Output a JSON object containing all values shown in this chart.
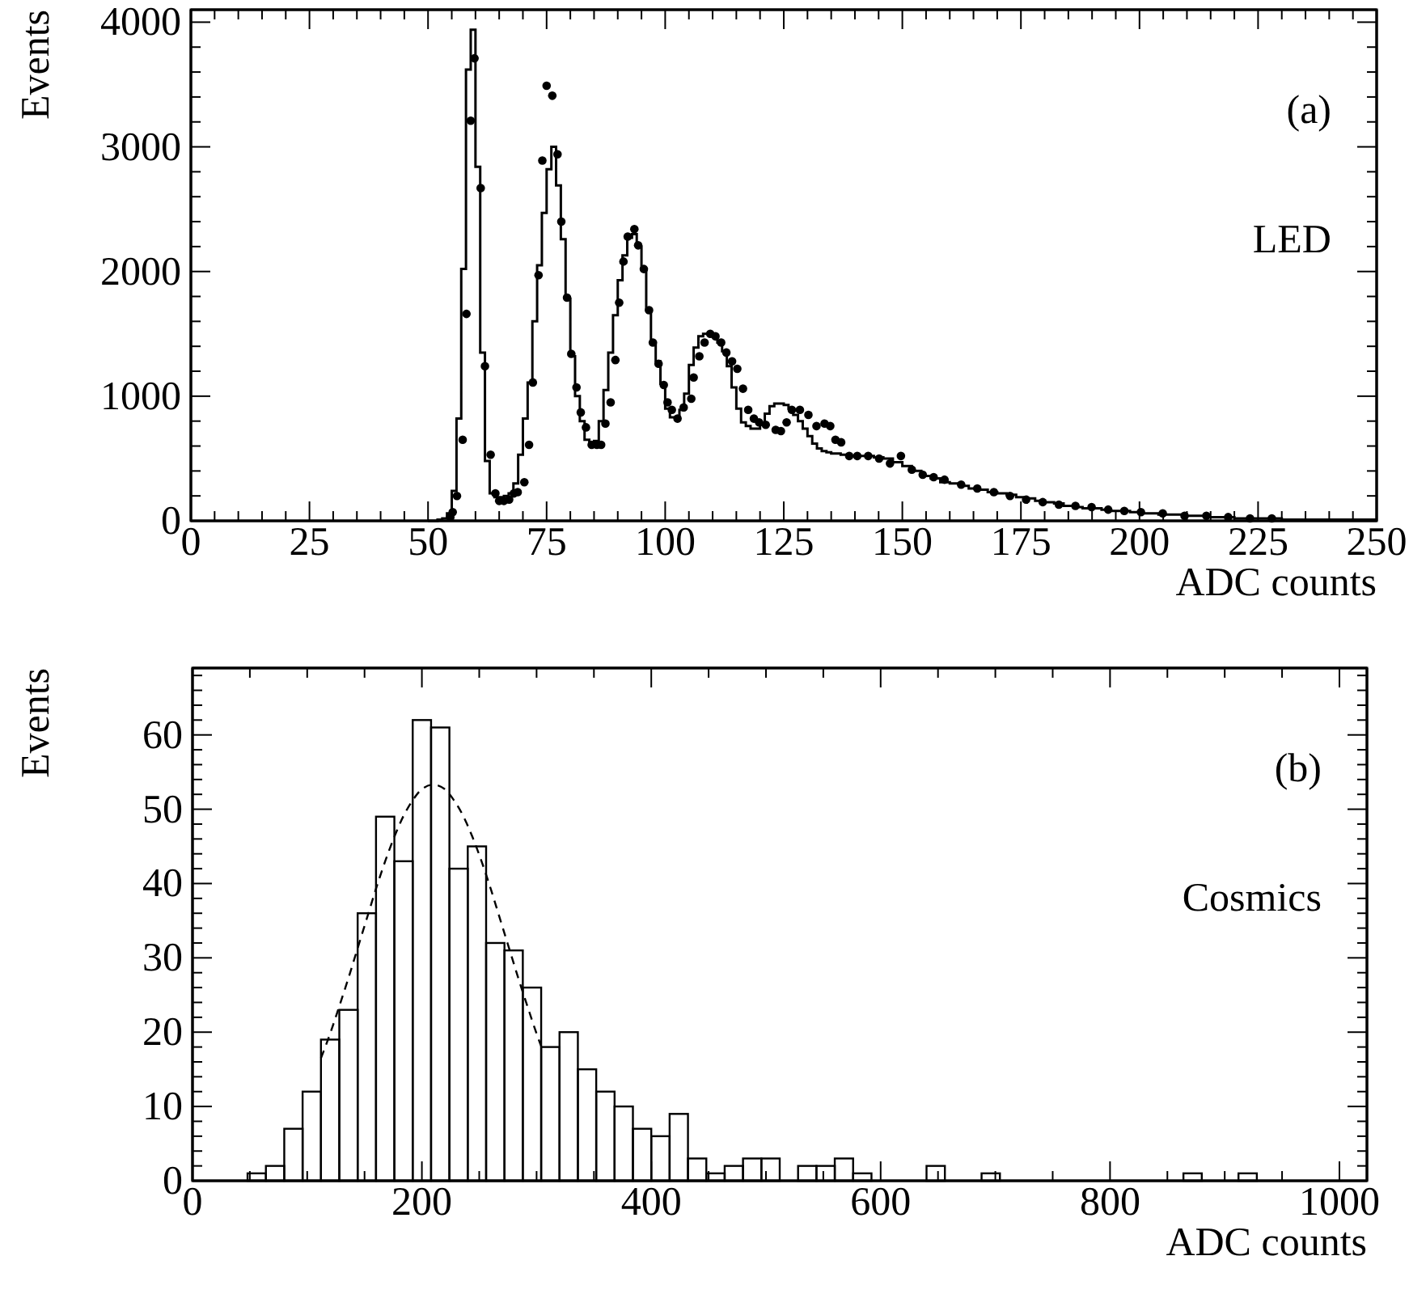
{
  "chart_data": [
    {
      "type": "step",
      "xlabel": "ADC counts",
      "ylabel": "Events",
      "annotations": [
        "(a)",
        "LED"
      ],
      "xlim": [
        0,
        250
      ],
      "ylim": [
        0,
        4100
      ],
      "xticks": [
        0,
        {
          "value": 5,
          "label": null
        },
        {
          "value": 10,
          "label": null
        },
        {
          "value": 15,
          "label": null
        },
        {
          "value": 20,
          "label": null
        },
        25,
        {
          "value": 30,
          "label": null
        },
        {
          "value": 35,
          "label": null
        },
        {
          "value": 40,
          "label": null
        },
        {
          "value": 45,
          "label": null
        },
        50,
        {
          "value": 55,
          "label": null
        },
        {
          "value": 60,
          "label": null
        },
        {
          "value": 65,
          "label": null
        },
        {
          "value": 70,
          "label": null
        },
        75,
        {
          "value": 80,
          "label": null
        },
        {
          "value": 85,
          "label": null
        },
        {
          "value": 90,
          "label": null
        },
        {
          "value": 95,
          "label": null
        },
        100,
        {
          "value": 105,
          "label": null
        },
        {
          "value": 110,
          "label": null
        },
        {
          "value": 115,
          "label": null
        },
        {
          "value": 120,
          "label": null
        },
        125,
        {
          "value": 130,
          "label": null
        },
        {
          "value": 135,
          "label": null
        },
        {
          "value": 140,
          "label": null
        },
        {
          "value": 145,
          "label": null
        },
        150,
        {
          "value": 155,
          "label": null
        },
        {
          "value": 160,
          "label": null
        },
        {
          "value": 165,
          "label": null
        },
        {
          "value": 170,
          "label": null
        },
        175,
        {
          "value": 180,
          "label": null
        },
        {
          "value": 185,
          "label": null
        },
        {
          "value": 190,
          "label": null
        },
        {
          "value": 195,
          "label": null
        },
        200,
        {
          "value": 205,
          "label": null
        },
        {
          "value": 210,
          "label": null
        },
        {
          "value": 215,
          "label": null
        },
        {
          "value": 220,
          "label": null
        },
        225,
        {
          "value": 230,
          "label": null
        },
        {
          "value": 235,
          "label": null
        },
        {
          "value": 240,
          "label": null
        },
        {
          "value": 245,
          "label": null
        },
        250
      ],
      "yticks": [
        0,
        {
          "value": 200,
          "label": null
        },
        {
          "value": 400,
          "label": null
        },
        {
          "value": 600,
          "label": null
        },
        {
          "value": 800,
          "label": null
        },
        1000,
        {
          "value": 1200,
          "label": null
        },
        {
          "value": 1400,
          "label": null
        },
        {
          "value": 1600,
          "label": null
        },
        {
          "value": 1800,
          "label": null
        },
        2000,
        {
          "value": 2200,
          "label": null
        },
        {
          "value": 2400,
          "label": null
        },
        {
          "value": 2600,
          "label": null
        },
        {
          "value": 2800,
          "label": null
        },
        3000,
        {
          "value": 3200,
          "label": null
        },
        {
          "value": 3400,
          "label": null
        },
        {
          "value": 3600,
          "label": null
        },
        {
          "value": 3800,
          "label": null
        },
        4000
      ],
      "series": [
        {
          "color": "#000000",
          "x": [
            50,
            51,
            52,
            53,
            54,
            55,
            56,
            57,
            58,
            59,
            60,
            61,
            62,
            63,
            64,
            65,
            66,
            67,
            68,
            69,
            70,
            71,
            72,
            73,
            74,
            75,
            76,
            77,
            78,
            79,
            80,
            81,
            82,
            83,
            84,
            85,
            86,
            87,
            88,
            89,
            90,
            91,
            92,
            93,
            94,
            95,
            96,
            97,
            98,
            99,
            100,
            101,
            102,
            103,
            104,
            105,
            106,
            107,
            108,
            109,
            110,
            111,
            112,
            113,
            114,
            115,
            116,
            117,
            118,
            119,
            120,
            121,
            122,
            123,
            124,
            125,
            126,
            127,
            128,
            129,
            130,
            131,
            132,
            133,
            134,
            135,
            136,
            137,
            138,
            139,
            140,
            142,
            144,
            146,
            148,
            150,
            152,
            154,
            156,
            158,
            160,
            162,
            164,
            166,
            168,
            170,
            172,
            174,
            176,
            178,
            180,
            182,
            184,
            186,
            188,
            190,
            192,
            194,
            196,
            198,
            200,
            202,
            204,
            206,
            208,
            210,
            212,
            214,
            216,
            218,
            220,
            222,
            224,
            226,
            228,
            230,
            232,
            234,
            236,
            238,
            240,
            242,
            244,
            246,
            248,
            250
          ],
          "values": [
            0,
            0,
            10,
            20,
            60,
            240,
            820,
            2020,
            3620,
            3940,
            2840,
            1350,
            480,
            220,
            190,
            190,
            200,
            220,
            300,
            530,
            820,
            1110,
            1600,
            2050,
            2470,
            2820,
            3000,
            2690,
            2260,
            1780,
            1320,
            1000,
            800,
            650,
            620,
            640,
            800,
            1050,
            1350,
            1650,
            1930,
            2130,
            2270,
            2300,
            2200,
            2020,
            1690,
            1430,
            1280,
            1100,
            900,
            830,
            830,
            890,
            1020,
            1250,
            1390,
            1480,
            1500,
            1500,
            1480,
            1430,
            1360,
            1240,
            1070,
            900,
            790,
            760,
            740,
            740,
            770,
            860,
            920,
            940,
            940,
            930,
            900,
            850,
            800,
            740,
            680,
            620,
            580,
            560,
            550,
            540,
            540,
            530,
            530,
            520,
            520,
            520,
            510,
            500,
            470,
            440,
            400,
            360,
            340,
            310,
            300,
            280,
            260,
            250,
            230,
            220,
            210,
            190,
            180,
            160,
            150,
            140,
            120,
            110,
            100,
            100,
            90,
            80,
            80,
            70,
            60,
            60,
            50,
            50,
            50,
            40,
            40,
            30,
            30,
            30,
            20,
            20,
            20,
            20,
            20,
            10,
            10,
            10,
            10,
            10,
            10,
            10,
            10,
            10,
            10,
            10
          ]
        },
        {
          "type": "scatter",
          "color": "#000000",
          "marker": "circle",
          "x": [
            54.7,
            55.2,
            56.1,
            57.3,
            58.1,
            59.0,
            59.8,
            61.1,
            62.0,
            63.2,
            64.2,
            65.0,
            66.0,
            67.1,
            68.1,
            68.9,
            70.3,
            71.3,
            72.1,
            73.3,
            74.1,
            75.0,
            76.2,
            77.3,
            78.1,
            79.3,
            80.2,
            81.3,
            82.2,
            83.3,
            84.5,
            85.6,
            86.5,
            87.4,
            88.5,
            89.5,
            90.3,
            91.2,
            92.1,
            93.5,
            94.3,
            95.5,
            96.6,
            97.4,
            98.6,
            99.7,
            100.5,
            101.4,
            102.6,
            103.9,
            105.5,
            106.0,
            107.2,
            108.3,
            109.5,
            110.6,
            111.8,
            112.9,
            114.1,
            115.2,
            116.4,
            117.5,
            118.7,
            119.8,
            121.2,
            123.3,
            124.4,
            125.6,
            126.7,
            128.4,
            130.2,
            131.9,
            133.6,
            134.8,
            135.9,
            137.1,
            138.8,
            140.5,
            142.8,
            145.1,
            147.4,
            149.7,
            152.0,
            154.3,
            156.6,
            158.9,
            162.4,
            165.8,
            169.3,
            172.7,
            176.1,
            179.6,
            183.0,
            186.5,
            189.9,
            193.4,
            196.8,
            200.3,
            204.9,
            209.5,
            214.1,
            218.7,
            223.3,
            227.9
          ],
          "values": [
            30,
            70,
            200,
            650,
            1660,
            3210,
            3710,
            2670,
            1240,
            530,
            220,
            160,
            160,
            170,
            220,
            230,
            310,
            610,
            1110,
            1970,
            2890,
            3490,
            3410,
            2940,
            2400,
            1790,
            1340,
            1070,
            870,
            750,
            610,
            610,
            610,
            780,
            950,
            1290,
            1750,
            2080,
            2280,
            2340,
            2210,
            2020,
            1690,
            1430,
            1260,
            1090,
            950,
            890,
            820,
            910,
            980,
            1150,
            1320,
            1430,
            1500,
            1480,
            1430,
            1350,
            1280,
            1220,
            1060,
            890,
            820,
            790,
            770,
            730,
            720,
            790,
            890,
            890,
            850,
            760,
            780,
            760,
            650,
            630,
            520,
            520,
            520,
            500,
            460,
            520,
            410,
            370,
            350,
            330,
            290,
            260,
            230,
            200,
            170,
            150,
            130,
            120,
            110,
            90,
            80,
            70,
            60,
            40,
            40,
            30,
            20,
            20
          ]
        }
      ]
    },
    {
      "type": "histogram",
      "xlabel": "ADC counts",
      "ylabel": "Events",
      "annotations": [
        "(b)",
        "Cosmics"
      ],
      "xlim": [
        0,
        1024
      ],
      "ylim": [
        0,
        69
      ],
      "xticks": [
        0,
        {
          "value": 50,
          "label": null
        },
        {
          "value": 100,
          "label": null
        },
        {
          "value": 150,
          "label": null
        },
        200,
        {
          "value": 250,
          "label": null
        },
        {
          "value": 300,
          "label": null
        },
        {
          "value": 350,
          "label": null
        },
        400,
        {
          "value": 450,
          "label": null
        },
        {
          "value": 500,
          "label": null
        },
        {
          "value": 550,
          "label": null
        },
        600,
        {
          "value": 650,
          "label": null
        },
        {
          "value": 700,
          "label": null
        },
        {
          "value": 750,
          "label": null
        },
        800,
        {
          "value": 850,
          "label": null
        },
        {
          "value": 900,
          "label": null
        },
        {
          "value": 950,
          "label": null
        },
        1000
      ],
      "yticks": [
        0,
        {
          "value": 2,
          "label": null
        },
        {
          "value": 4,
          "label": null
        },
        {
          "value": 6,
          "label": null
        },
        {
          "value": 8,
          "label": null
        },
        10,
        {
          "value": 12,
          "label": null
        },
        {
          "value": 14,
          "label": null
        },
        {
          "value": 16,
          "label": null
        },
        {
          "value": 18,
          "label": null
        },
        20,
        {
          "value": 22,
          "label": null
        },
        {
          "value": 24,
          "label": null
        },
        {
          "value": 26,
          "label": null
        },
        {
          "value": 28,
          "label": null
        },
        30,
        {
          "value": 32,
          "label": null
        },
        {
          "value": 34,
          "label": null
        },
        {
          "value": 36,
          "label": null
        },
        {
          "value": 38,
          "label": null
        },
        40,
        {
          "value": 42,
          "label": null
        },
        {
          "value": 44,
          "label": null
        },
        {
          "value": 46,
          "label": null
        },
        {
          "value": 48,
          "label": null
        },
        50,
        {
          "value": 52,
          "label": null
        },
        {
          "value": 54,
          "label": null
        },
        {
          "value": 56,
          "label": null
        },
        {
          "value": 58,
          "label": null
        },
        60,
        {
          "value": 62,
          "label": null
        },
        {
          "value": 64,
          "label": null
        },
        {
          "value": 66,
          "label": null
        },
        {
          "value": 68,
          "label": null
        }
      ],
      "color": "#000000",
      "bins": [
        48,
        64,
        80,
        96,
        112,
        128,
        144,
        160,
        176,
        192,
        208,
        224,
        240,
        256,
        272,
        288,
        304,
        320,
        336,
        352,
        368,
        384,
        400,
        416,
        432,
        448,
        464,
        480,
        496,
        512,
        528,
        544,
        560,
        576,
        592,
        608,
        624,
        640,
        656,
        672,
        688,
        704,
        720,
        736,
        752,
        768,
        784,
        800,
        816,
        832,
        848,
        864,
        880,
        896,
        912,
        928,
        944,
        960,
        976,
        992,
        1008,
        1024
      ],
      "values": [
        1,
        2,
        7,
        12,
        19,
        23,
        36,
        49,
        43,
        62,
        61,
        42,
        45,
        32,
        31,
        26,
        18,
        20,
        15,
        12,
        10,
        7,
        6,
        9,
        3,
        1,
        2,
        3,
        3,
        0,
        2,
        2,
        3,
        1,
        0,
        0,
        0,
        2,
        0,
        0,
        1,
        0,
        0,
        0,
        0,
        0,
        0,
        0,
        0,
        0,
        0,
        1,
        0,
        0,
        1,
        0,
        0,
        0,
        0,
        0,
        0
      ],
      "series": [
        {
          "type": "line",
          "color": "#000000",
          "line_style": "dashed",
          "x": [
            112,
            120,
            128,
            136,
            144,
            152,
            160,
            168,
            176,
            184,
            192,
            200,
            210,
            220,
            228,
            236,
            244,
            252,
            260,
            268,
            276,
            284,
            292,
            300,
            304
          ],
          "values": [
            16.5,
            19.8,
            23.5,
            27.3,
            31.3,
            35.3,
            39.3,
            43.0,
            46.3,
            49.1,
            51.2,
            52.7,
            53.3,
            52.7,
            51.2,
            49.1,
            46.3,
            43.0,
            39.3,
            35.3,
            31.3,
            27.3,
            23.5,
            19.8,
            18.1
          ]
        }
      ]
    }
  ]
}
